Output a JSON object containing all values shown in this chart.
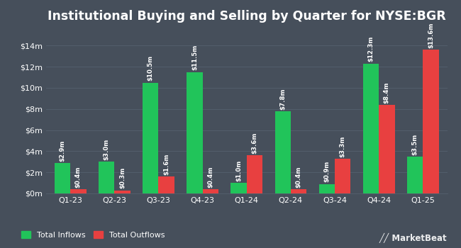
{
  "title": "Institutional Buying and Selling by Quarter for NYSE:BGR",
  "quarters": [
    "Q1-23",
    "Q2-23",
    "Q3-23",
    "Q4-23",
    "Q1-24",
    "Q2-24",
    "Q3-24",
    "Q4-24",
    "Q1-25"
  ],
  "inflows": [
    2.9,
    3.0,
    10.5,
    11.5,
    1.0,
    7.8,
    0.9,
    12.3,
    3.5
  ],
  "outflows": [
    0.4,
    0.3,
    1.6,
    0.4,
    3.6,
    0.4,
    3.3,
    8.4,
    13.6
  ],
  "inflow_labels": [
    "$2.9m",
    "$3.0m",
    "$10.5m",
    "$11.5m",
    "$1.0m",
    "$7.8m",
    "$0.9m",
    "$12.3m",
    "$3.5m"
  ],
  "outflow_labels": [
    "$0.4m",
    "$0.3m",
    "$1.6m",
    "$0.4m",
    "$3.6m",
    "$0.4m",
    "$3.3m",
    "$8.4m",
    "$13.6m"
  ],
  "inflow_color": "#21c45a",
  "outflow_color": "#e84040",
  "background_color": "#464f5b",
  "text_color": "#ffffff",
  "grid_color": "#525d6b",
  "ylim": [
    0,
    15.5
  ],
  "yticks": [
    0,
    2,
    4,
    6,
    8,
    10,
    12,
    14
  ],
  "ytick_labels": [
    "$0m",
    "$2m",
    "$4m",
    "$6m",
    "$8m",
    "$10m",
    "$12m",
    "$14m"
  ],
  "legend_inflows": "Total Inflows",
  "legend_outflows": "Total Outflows",
  "bar_width": 0.36,
  "title_fontsize": 12.5,
  "label_fontsize": 6.2,
  "tick_fontsize": 8,
  "legend_fontsize": 8
}
